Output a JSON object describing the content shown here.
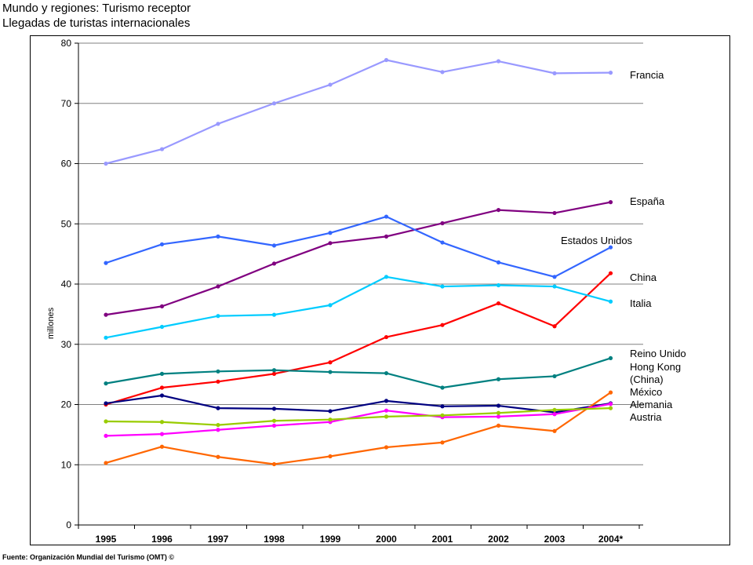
{
  "header": {
    "title": "Mundo y regiones:  Turismo receptor",
    "subtitle": "Llegadas de turistas internacionales"
  },
  "footer": {
    "source": "Fuente: Organización Mundial del Turismo (OMT) ©"
  },
  "chart_data": {
    "type": "line",
    "title": "Mundo y regiones:  Turismo receptor",
    "subtitle": "Llegadas de turistas internacionales",
    "xlabel": "",
    "ylabel": "millones",
    "ylim": [
      0,
      80
    ],
    "yticks": [
      0,
      10,
      20,
      30,
      40,
      50,
      60,
      70,
      80
    ],
    "grid": true,
    "legend": "inline labels at right end of lines",
    "categories": [
      "1995",
      "1996",
      "1997",
      "1998",
      "1999",
      "2000",
      "2001",
      "2002",
      "2003",
      "2004*"
    ],
    "series": [
      {
        "name": "Francia",
        "label_lines": [
          "Francia"
        ],
        "color": "#9999ff",
        "values": [
          60.0,
          62.4,
          66.6,
          70.0,
          73.1,
          77.2,
          75.2,
          77.0,
          75.0,
          75.1
        ]
      },
      {
        "name": "España",
        "label_lines": [
          "España"
        ],
        "color": "#800080",
        "values": [
          34.9,
          36.3,
          39.6,
          43.4,
          46.8,
          47.9,
          50.1,
          52.3,
          51.8,
          53.6
        ]
      },
      {
        "name": "Estados Unidos",
        "label_lines": [
          "Estados Unidos"
        ],
        "color": "#3366ff",
        "values": [
          43.5,
          46.6,
          47.9,
          46.4,
          48.5,
          51.2,
          46.9,
          43.6,
          41.2,
          46.1
        ]
      },
      {
        "name": "China",
        "label_lines": [
          "China"
        ],
        "color": "#ff0000",
        "values": [
          20.0,
          22.8,
          23.8,
          25.1,
          27.0,
          31.2,
          33.2,
          36.8,
          33.0,
          41.8
        ]
      },
      {
        "name": "Italia",
        "label_lines": [
          "Italia"
        ],
        "color": "#00ccff",
        "values": [
          31.1,
          32.9,
          34.7,
          34.9,
          36.5,
          41.2,
          39.6,
          39.8,
          39.6,
          37.1
        ]
      },
      {
        "name": "Reino Unido",
        "label_lines": [
          "Reino Unido"
        ],
        "color": "#008080",
        "values": [
          23.5,
          25.1,
          25.5,
          25.7,
          25.4,
          25.2,
          22.8,
          24.2,
          24.7,
          27.7
        ]
      },
      {
        "name": "Hong Kong (China)",
        "label_lines": [
          "Hong Kong",
          "(China)"
        ],
        "color": "#000080",
        "values": [
          20.2,
          21.5,
          19.4,
          19.3,
          18.9,
          20.6,
          19.7,
          19.8,
          18.7,
          20.2
        ]
      },
      {
        "name": "México",
        "label_lines": [
          "México"
        ],
        "color": "#ff6600",
        "values": [
          10.3,
          13.0,
          11.3,
          10.1,
          11.4,
          12.9,
          13.7,
          16.5,
          15.6,
          22.0
        ]
      },
      {
        "name": "Alemania",
        "label_lines": [
          "Alemania"
        ],
        "color": "#ff00ff",
        "values": [
          14.8,
          15.1,
          15.8,
          16.5,
          17.1,
          19.0,
          17.9,
          18.0,
          18.4,
          20.1
        ]
      },
      {
        "name": "Austria",
        "label_lines": [
          "Austria"
        ],
        "color": "#99cc00",
        "values": [
          17.2,
          17.1,
          16.6,
          17.3,
          17.5,
          18.0,
          18.2,
          18.6,
          19.1,
          19.4
        ]
      }
    ]
  }
}
